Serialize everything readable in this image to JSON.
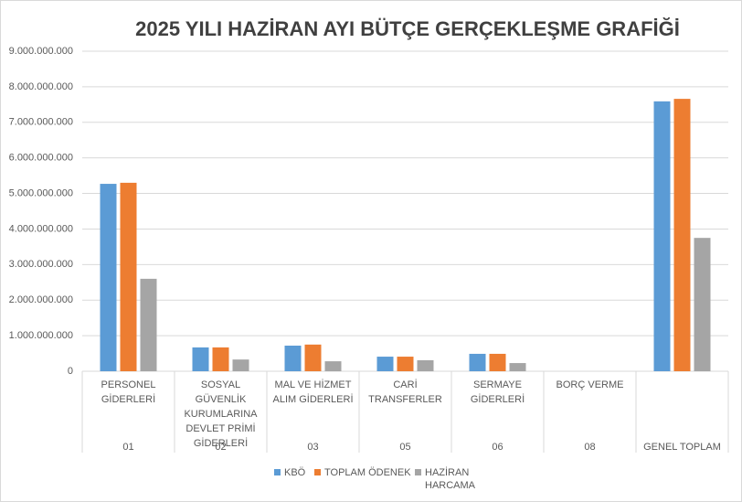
{
  "chart_data": {
    "type": "bar",
    "title": "2025 YILI HAZİRAN AYI BÜTÇE GERÇEKLEŞME GRAFİĞİ",
    "categories": [
      "PERSONEL GİDERLERİ",
      "SOSYAL GÜVENLİK KURUMLARINA DEVLET PRİMİ GİDERLERİ",
      "MAL VE HİZMET ALIM GİDERLERİ",
      "CARİ TRANSFERLER",
      "SERMAYE GİDERLERİ",
      "BORÇ VERME",
      null
    ],
    "groups": [
      "01",
      "02",
      "03",
      "05",
      "06",
      "08",
      "GENEL TOPLAM"
    ],
    "series": [
      {
        "name": "KBÖ",
        "color": "#5b9bd5",
        "values": [
          5270000000,
          670000000,
          720000000,
          410000000,
          490000000,
          0,
          7590000000
        ]
      },
      {
        "name": "TOPLAM ÖDENEK",
        "color": "#ed7d31",
        "values": [
          5300000000,
          670000000,
          750000000,
          410000000,
          490000000,
          0,
          7660000000
        ]
      },
      {
        "name": "HAZİRAN HARCAMA",
        "color": "#a5a5a5",
        "values": [
          2600000000,
          330000000,
          280000000,
          310000000,
          230000000,
          0,
          3750000000
        ]
      }
    ],
    "ylim": [
      0,
      9000000000
    ],
    "yticks": [
      0,
      {
        "value": 1000000000,
        "label": "1.000.000.000"
      },
      {
        "value": 2000000000,
        "label": "2.000.000.000"
      },
      {
        "value": 3000000000,
        "label": "3.000.000.000"
      },
      {
        "value": 4000000000,
        "label": "4.000.000.000"
      },
      {
        "value": 5000000000,
        "label": "5.000.000.000"
      },
      {
        "value": 6000000000,
        "label": "6.000.000.000"
      },
      {
        "value": 7000000000,
        "label": "7.000.000.000"
      },
      {
        "value": 8000000000,
        "label": "8.000.000.000"
      },
      {
        "value": 9000000000,
        "label": "9.000.000.000"
      }
    ],
    "grid": true,
    "legend": "bottom"
  }
}
